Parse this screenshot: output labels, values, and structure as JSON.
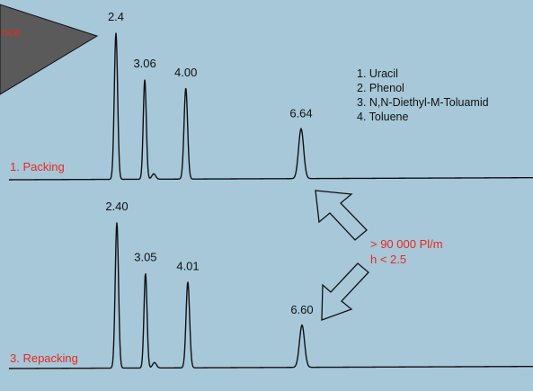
{
  "banner_text": "nce",
  "colors": {
    "background": "#a7c8d9",
    "trace": "#111111",
    "highlight": "#e8281e",
    "banner_fill": "#5a5a5a"
  },
  "legend": [
    "1. Uracil",
    "2. Phenol",
    "3. N,N-Diethyl-M-Toluamid",
    "4. Toluene"
  ],
  "annotation": {
    "plates": "> 90 000 Pl/m",
    "h_value": "h < 2.5"
  },
  "chart_data": [
    {
      "type": "line",
      "title": "",
      "trace_label": "1. Packing",
      "xlabel": "",
      "ylabel": "",
      "xlim": [
        0,
        13
      ],
      "peaks": [
        {
          "time": 2.4,
          "label": "2.4",
          "height": 1.0
        },
        {
          "time": 3.06,
          "label": "3.06",
          "height": 0.68
        },
        {
          "time": 4.0,
          "label": "4.00",
          "height": 0.62
        },
        {
          "time": 6.64,
          "label": "6.64",
          "height": 0.34
        }
      ]
    },
    {
      "type": "line",
      "title": "",
      "trace_label": "3. Repacking",
      "xlabel": "",
      "ylabel": "",
      "xlim": [
        0,
        13
      ],
      "peaks": [
        {
          "time": 2.4,
          "label": "2.40",
          "height": 1.0
        },
        {
          "time": 3.05,
          "label": "3.05",
          "height": 0.65
        },
        {
          "time": 4.01,
          "label": "4.01",
          "height": 0.59
        },
        {
          "time": 6.6,
          "label": "6.60",
          "height": 0.29
        }
      ]
    }
  ]
}
